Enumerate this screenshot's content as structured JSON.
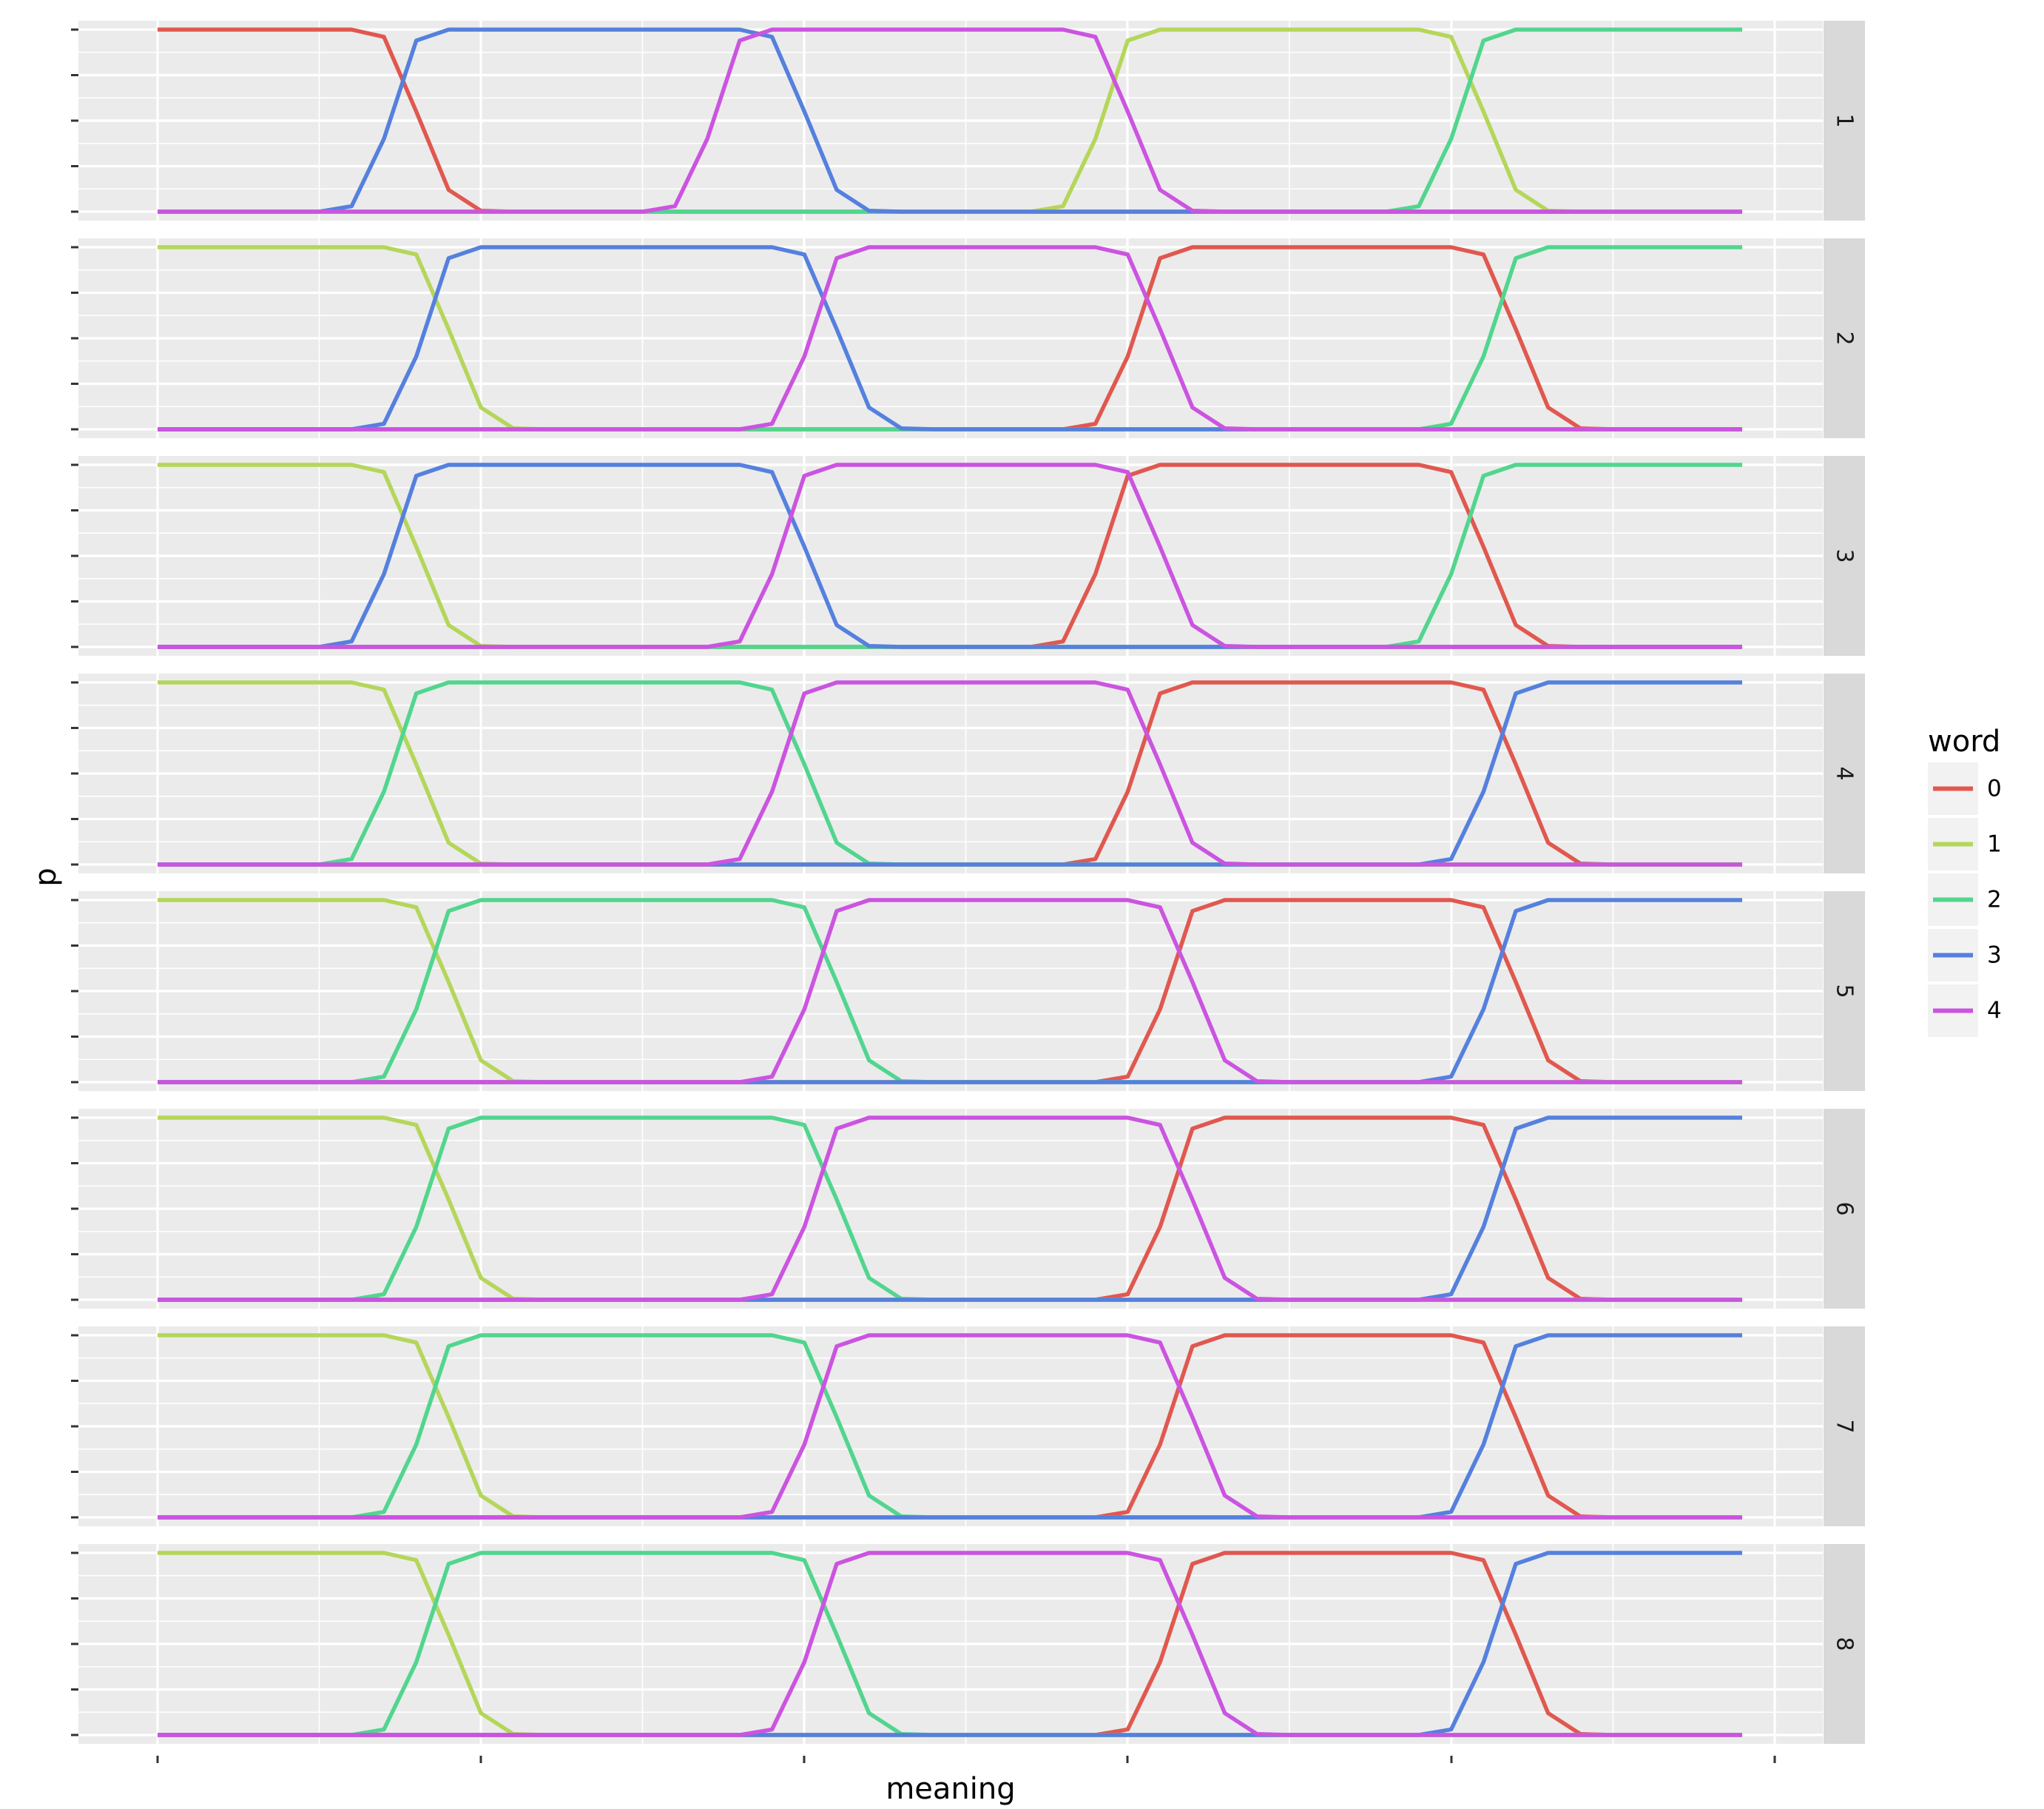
{
  "chart_data": {
    "type": "line",
    "facet_by": "panel",
    "panels": [
      "1",
      "2",
      "3",
      "4",
      "5",
      "6",
      "7",
      "8"
    ],
    "xlabel": "meaning",
    "ylabel": "p",
    "x_tick_count": 6,
    "x_tick_labels_visible": false,
    "y_tick_count": 5,
    "y_tick_labels_visible": false,
    "ylim": [
      0,
      1
    ],
    "legend": {
      "title": "word",
      "position": "right",
      "entries": [
        {
          "label": "0",
          "color": "#e0584f"
        },
        {
          "label": "1",
          "color": "#b5d65a"
        },
        {
          "label": "2",
          "color": "#52d58e"
        },
        {
          "label": "3",
          "color": "#5580de"
        },
        {
          "label": "4",
          "color": "#cb54e0"
        }
      ]
    },
    "grid": "on",
    "step_ramp": {
      "pre": 0.005,
      "mid1": 0.12,
      "mid2": 0.88,
      "post": 0.995
    },
    "panel_series": [
      {
        "panel": "1",
        "plateaus": [
          {
            "word": "0",
            "start": 0,
            "end": 6
          },
          {
            "word": "3",
            "start": 9,
            "end": 18
          },
          {
            "word": "4",
            "start": 19,
            "end": 28
          },
          {
            "word": "1",
            "start": 31,
            "end": 39
          },
          {
            "word": "2",
            "start": 42,
            "end": 49
          }
        ]
      },
      {
        "panel": "2",
        "plateaus": [
          {
            "word": "1",
            "start": 0,
            "end": 7
          },
          {
            "word": "3",
            "start": 10,
            "end": 19
          },
          {
            "word": "4",
            "start": 22,
            "end": 29
          },
          {
            "word": "0",
            "start": 32,
            "end": 40
          },
          {
            "word": "2",
            "start": 43,
            "end": 49
          }
        ]
      },
      {
        "panel": "3",
        "plateaus": [
          {
            "word": "1",
            "start": 0,
            "end": 6
          },
          {
            "word": "3",
            "start": 9,
            "end": 18
          },
          {
            "word": "4",
            "start": 21,
            "end": 29
          },
          {
            "word": "0",
            "start": 31,
            "end": 39
          },
          {
            "word": "2",
            "start": 42,
            "end": 49
          }
        ]
      },
      {
        "panel": "4",
        "plateaus": [
          {
            "word": "1",
            "start": 0,
            "end": 6
          },
          {
            "word": "2",
            "start": 9,
            "end": 18
          },
          {
            "word": "4",
            "start": 21,
            "end": 29
          },
          {
            "word": "0",
            "start": 32,
            "end": 40
          },
          {
            "word": "3",
            "start": 43,
            "end": 49
          }
        ]
      },
      {
        "panel": "5",
        "plateaus": [
          {
            "word": "1",
            "start": 0,
            "end": 7
          },
          {
            "word": "2",
            "start": 10,
            "end": 19
          },
          {
            "word": "4",
            "start": 22,
            "end": 30
          },
          {
            "word": "0",
            "start": 33,
            "end": 40
          },
          {
            "word": "3",
            "start": 43,
            "end": 49
          }
        ]
      },
      {
        "panel": "6",
        "plateaus": [
          {
            "word": "1",
            "start": 0,
            "end": 7
          },
          {
            "word": "2",
            "start": 10,
            "end": 19
          },
          {
            "word": "4",
            "start": 22,
            "end": 30
          },
          {
            "word": "0",
            "start": 33,
            "end": 40
          },
          {
            "word": "3",
            "start": 43,
            "end": 49
          }
        ]
      },
      {
        "panel": "7",
        "plateaus": [
          {
            "word": "1",
            "start": 0,
            "end": 7
          },
          {
            "word": "2",
            "start": 10,
            "end": 19
          },
          {
            "word": "4",
            "start": 22,
            "end": 30
          },
          {
            "word": "0",
            "start": 33,
            "end": 40
          },
          {
            "word": "3",
            "start": 43,
            "end": 49
          }
        ]
      },
      {
        "panel": "8",
        "plateaus": [
          {
            "word": "1",
            "start": 0,
            "end": 7
          },
          {
            "word": "2",
            "start": 10,
            "end": 19
          },
          {
            "word": "4",
            "start": 22,
            "end": 30
          },
          {
            "word": "0",
            "start": 33,
            "end": 40
          },
          {
            "word": "3",
            "start": 43,
            "end": 49
          }
        ]
      }
    ]
  }
}
